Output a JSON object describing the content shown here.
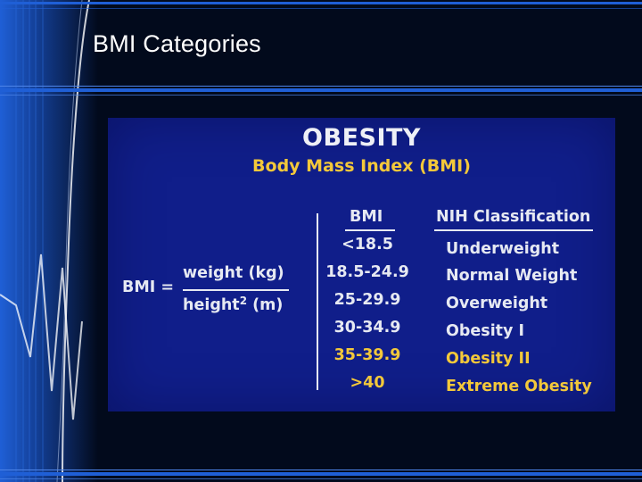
{
  "slide": {
    "title": "BMI Categories"
  },
  "image": {
    "heading": "OBESITY",
    "subheading": "Body Mass Index (BMI)",
    "formula": {
      "lhs": "BMI =",
      "numerator": "weight (kg)",
      "denominator_base": "height",
      "denominator_exponent": "2",
      "denominator_unit": "(m)"
    },
    "table": {
      "headers": [
        "BMI",
        "NIH Classification"
      ],
      "rows": [
        {
          "range": "<18.5",
          "classification": "Underweight",
          "color": "#e6e9f2"
        },
        {
          "range": "18.5-24.9",
          "classification": "Normal Weight",
          "color": "#e6e9f2"
        },
        {
          "range": "25-29.9",
          "classification": "Overweight",
          "color": "#e6e9f2"
        },
        {
          "range": "30-34.9",
          "classification": "Obesity I",
          "color": "#e6e9f2"
        },
        {
          "range": "35-39.9",
          "classification": "Obesity II",
          "color": "#f3c83a"
        },
        {
          "range": ">40",
          "classification": "Extreme Obesity",
          "color": "#f3c83a"
        }
      ]
    },
    "colors": {
      "panel_background": "#101e8a",
      "heading_text": "#eef0f6",
      "accent_yellow": "#f3c83a",
      "slide_background": "#020a1c",
      "accent_blue": "#1f5fd6"
    }
  }
}
